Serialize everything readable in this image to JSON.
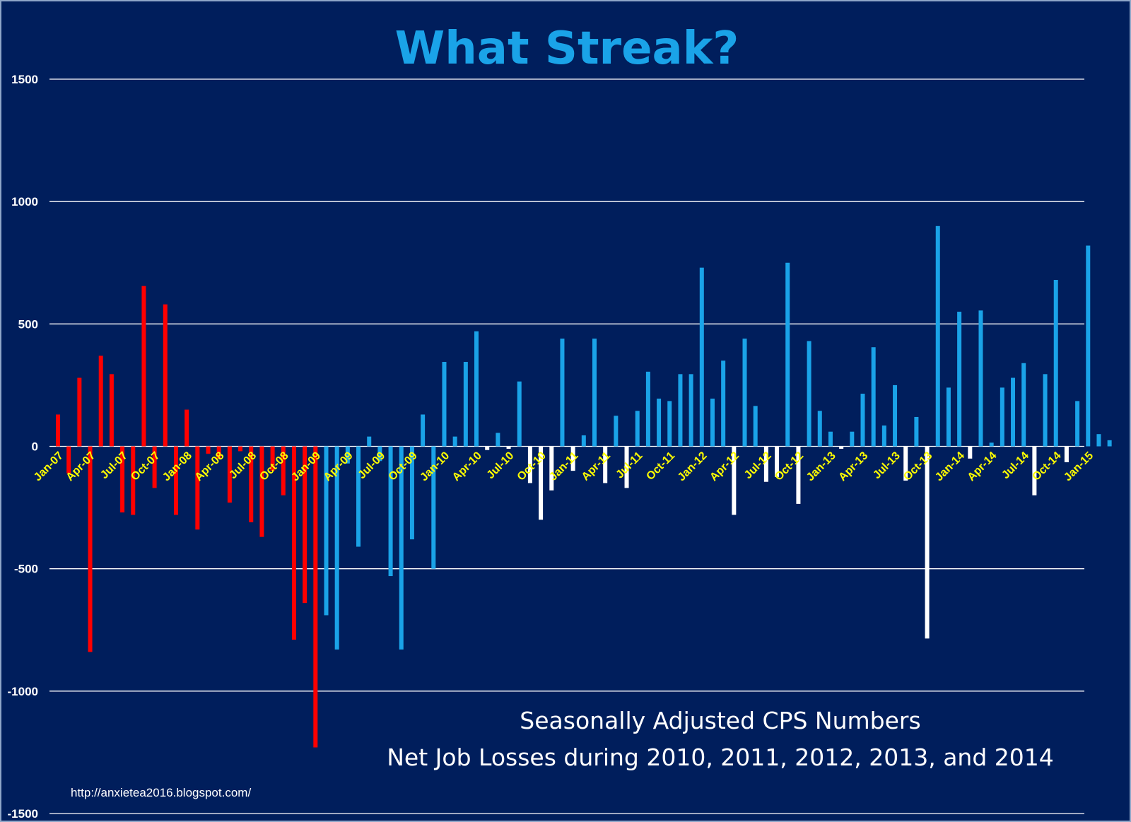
{
  "chart_data": {
    "type": "bar",
    "title": "What Streak?",
    "annotations": [
      "Seasonally Adjusted CPS Numbers",
      "Net Job Losses during 2010, 2011, 2012, 2013, and 2014"
    ],
    "source_text": "http://anxietea2016.blogspot.com/",
    "ylim": [
      -1500,
      1500
    ],
    "yticks": [
      1500,
      1000,
      500,
      0,
      -500,
      -1000,
      -1500
    ],
    "grid": true,
    "legend": "none",
    "colors": {
      "background": "#001e5c",
      "title": "#1aa3e8",
      "bar_red": "#ff0000",
      "bar_blue": "#1aa3e8",
      "bar_white": "#ffffff",
      "tick_x": "#ffff00",
      "tick_y": "#ffffff",
      "grid": "#ffffff"
    },
    "x_tick_labels": [
      {
        "index": 0,
        "label": "Jan-07"
      },
      {
        "index": 3,
        "label": "Apr-07"
      },
      {
        "index": 6,
        "label": "Jul-07"
      },
      {
        "index": 9,
        "label": "Oct-07"
      },
      {
        "index": 12,
        "label": "Jan-08"
      },
      {
        "index": 15,
        "label": "Apr-08"
      },
      {
        "index": 18,
        "label": "Jul-08"
      },
      {
        "index": 21,
        "label": "Oct-08"
      },
      {
        "index": 24,
        "label": "Jan-09"
      },
      {
        "index": 27,
        "label": "Apr-09"
      },
      {
        "index": 30,
        "label": "Jul-09"
      },
      {
        "index": 33,
        "label": "Oct-09"
      },
      {
        "index": 36,
        "label": "Jan-10"
      },
      {
        "index": 39,
        "label": "Apr-10"
      },
      {
        "index": 42,
        "label": "Jul-10"
      },
      {
        "index": 45,
        "label": "Oct-10"
      },
      {
        "index": 48,
        "label": "Jan-11"
      },
      {
        "index": 51,
        "label": "Apr-11"
      },
      {
        "index": 54,
        "label": "Jul-11"
      },
      {
        "index": 57,
        "label": "Oct-11"
      },
      {
        "index": 60,
        "label": "Jan-12"
      },
      {
        "index": 63,
        "label": "Apr-12"
      },
      {
        "index": 66,
        "label": "Jul-12"
      },
      {
        "index": 69,
        "label": "Oct-12"
      },
      {
        "index": 72,
        "label": "Jan-13"
      },
      {
        "index": 75,
        "label": "Apr-13"
      },
      {
        "index": 78,
        "label": "Jul-13"
      },
      {
        "index": 81,
        "label": "Oct-13"
      },
      {
        "index": 84,
        "label": "Jan-14"
      },
      {
        "index": 87,
        "label": "Apr-14"
      },
      {
        "index": 90,
        "label": "Jul-14"
      },
      {
        "index": 93,
        "label": "Oct-14"
      },
      {
        "index": 96,
        "label": "Jan-15"
      }
    ],
    "values": [
      130,
      -110,
      280,
      -840,
      370,
      295,
      -270,
      -280,
      655,
      -170,
      580,
      -280,
      150,
      -340,
      -30,
      -50,
      -230,
      -20,
      -310,
      -370,
      -100,
      -200,
      -790,
      -640,
      -1230,
      -690,
      -830,
      -70,
      -410,
      40,
      -60,
      -530,
      -830,
      -380,
      130,
      -500,
      345,
      40,
      345,
      470,
      -15,
      55,
      -10,
      265,
      -150,
      -300,
      -180,
      440,
      -100,
      45,
      440,
      -150,
      125,
      -170,
      145,
      305,
      195,
      185,
      295,
      295,
      730,
      195,
      350,
      -280,
      440,
      165,
      -145,
      -125,
      750,
      -235,
      430,
      145,
      60,
      -10,
      60,
      215,
      405,
      85,
      250,
      -140,
      120,
      -785,
      900,
      240,
      550,
      -50,
      555,
      15,
      240,
      280,
      340,
      -200,
      295,
      680,
      -65,
      185,
      820,
      50,
      25
    ],
    "bar_color_groups": [
      {
        "color": "red",
        "from_index": 0,
        "to_index": 24
      },
      {
        "color": "blue",
        "from_index": 25,
        "to_index": 98,
        "negative_2010_to_2014": "white"
      }
    ]
  }
}
